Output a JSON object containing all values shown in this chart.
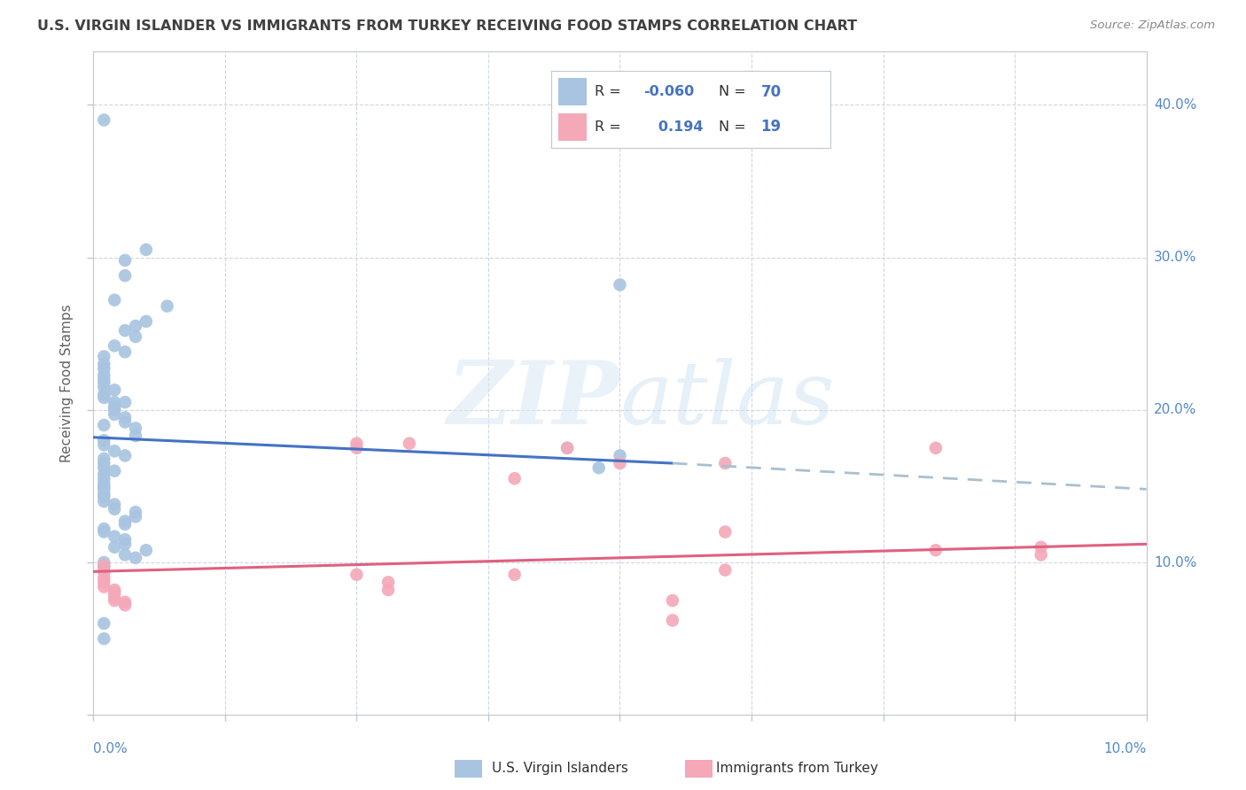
{
  "title": "U.S. VIRGIN ISLANDER VS IMMIGRANTS FROM TURKEY RECEIVING FOOD STAMPS CORRELATION CHART",
  "source": "Source: ZipAtlas.com",
  "ylabel": "Receiving Food Stamps",
  "xlim": [
    0.0,
    0.1
  ],
  "ylim": [
    0.0,
    0.435
  ],
  "blue_color": "#a8c4e0",
  "pink_color": "#f4a8b8",
  "blue_line_color": "#4472c4",
  "pink_line_color": "#e06080",
  "dashed_line_color": "#a8c0d0",
  "title_color": "#404040",
  "source_color": "#888888",
  "axis_label_color": "#5588cc",
  "blue_scatter": [
    [
      0.001,
      0.39
    ],
    [
      0.005,
      0.305
    ],
    [
      0.003,
      0.298
    ],
    [
      0.003,
      0.288
    ],
    [
      0.002,
      0.272
    ],
    [
      0.007,
      0.268
    ],
    [
      0.005,
      0.258
    ],
    [
      0.003,
      0.252
    ],
    [
      0.004,
      0.255
    ],
    [
      0.004,
      0.248
    ],
    [
      0.002,
      0.242
    ],
    [
      0.003,
      0.238
    ],
    [
      0.001,
      0.235
    ],
    [
      0.001,
      0.23
    ],
    [
      0.001,
      0.227
    ],
    [
      0.001,
      0.223
    ],
    [
      0.001,
      0.22
    ],
    [
      0.001,
      0.218
    ],
    [
      0.001,
      0.215
    ],
    [
      0.002,
      0.213
    ],
    [
      0.001,
      0.21
    ],
    [
      0.001,
      0.208
    ],
    [
      0.002,
      0.205
    ],
    [
      0.003,
      0.205
    ],
    [
      0.002,
      0.202
    ],
    [
      0.002,
      0.2
    ],
    [
      0.002,
      0.197
    ],
    [
      0.003,
      0.195
    ],
    [
      0.003,
      0.192
    ],
    [
      0.001,
      0.19
    ],
    [
      0.004,
      0.188
    ],
    [
      0.004,
      0.183
    ],
    [
      0.001,
      0.18
    ],
    [
      0.001,
      0.177
    ],
    [
      0.002,
      0.173
    ],
    [
      0.003,
      0.17
    ],
    [
      0.001,
      0.168
    ],
    [
      0.001,
      0.165
    ],
    [
      0.001,
      0.162
    ],
    [
      0.002,
      0.16
    ],
    [
      0.001,
      0.158
    ],
    [
      0.001,
      0.155
    ],
    [
      0.001,
      0.152
    ],
    [
      0.001,
      0.15
    ],
    [
      0.001,
      0.148
    ],
    [
      0.001,
      0.145
    ],
    [
      0.001,
      0.143
    ],
    [
      0.001,
      0.14
    ],
    [
      0.002,
      0.138
    ],
    [
      0.002,
      0.135
    ],
    [
      0.004,
      0.133
    ],
    [
      0.004,
      0.13
    ],
    [
      0.003,
      0.127
    ],
    [
      0.003,
      0.125
    ],
    [
      0.001,
      0.122
    ],
    [
      0.001,
      0.12
    ],
    [
      0.002,
      0.117
    ],
    [
      0.003,
      0.115
    ],
    [
      0.003,
      0.112
    ],
    [
      0.002,
      0.11
    ],
    [
      0.005,
      0.108
    ],
    [
      0.003,
      0.105
    ],
    [
      0.004,
      0.103
    ],
    [
      0.001,
      0.1
    ],
    [
      0.001,
      0.097
    ],
    [
      0.001,
      0.094
    ],
    [
      0.045,
      0.175
    ],
    [
      0.048,
      0.162
    ],
    [
      0.05,
      0.282
    ],
    [
      0.05,
      0.17
    ],
    [
      0.001,
      0.06
    ],
    [
      0.001,
      0.05
    ]
  ],
  "pink_scatter": [
    [
      0.001,
      0.098
    ],
    [
      0.001,
      0.094
    ],
    [
      0.001,
      0.09
    ],
    [
      0.001,
      0.087
    ],
    [
      0.001,
      0.084
    ],
    [
      0.002,
      0.082
    ],
    [
      0.002,
      0.08
    ],
    [
      0.002,
      0.077
    ],
    [
      0.002,
      0.075
    ],
    [
      0.003,
      0.074
    ],
    [
      0.003,
      0.072
    ],
    [
      0.025,
      0.178
    ],
    [
      0.025,
      0.175
    ],
    [
      0.025,
      0.092
    ],
    [
      0.028,
      0.087
    ],
    [
      0.028,
      0.082
    ],
    [
      0.03,
      0.178
    ],
    [
      0.04,
      0.155
    ],
    [
      0.04,
      0.092
    ],
    [
      0.045,
      0.175
    ],
    [
      0.05,
      0.165
    ],
    [
      0.055,
      0.075
    ],
    [
      0.055,
      0.062
    ],
    [
      0.06,
      0.165
    ],
    [
      0.06,
      0.12
    ],
    [
      0.06,
      0.095
    ],
    [
      0.08,
      0.175
    ],
    [
      0.08,
      0.108
    ],
    [
      0.09,
      0.11
    ],
    [
      0.09,
      0.105
    ]
  ],
  "blue_trendline": [
    [
      0.0,
      0.182
    ],
    [
      0.055,
      0.165
    ]
  ],
  "blue_trendline_dashed": [
    [
      0.055,
      0.165
    ],
    [
      0.1,
      0.148
    ]
  ],
  "pink_trendline": [
    [
      0.0,
      0.094
    ],
    [
      0.1,
      0.112
    ]
  ],
  "watermark_zip": "ZIP",
  "watermark_atlas": "atlas",
  "background_color": "#ffffff",
  "grid_color": "#c8d4e0"
}
